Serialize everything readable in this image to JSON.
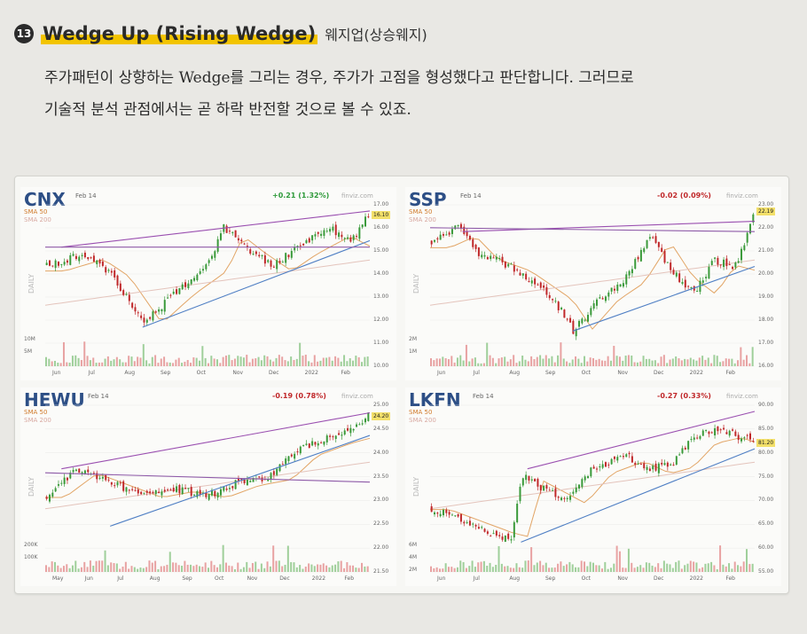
{
  "header": {
    "number": "13",
    "title": "Wedge Up (Rising Wedge)",
    "subtitle": "웨지업(상승웨지)"
  },
  "paragraph": {
    "line1": "주가패턴이 상향하는 Wedge를 그리는 경우, 주가가 고점을 형성했다고 판단합니다. 그러므로",
    "line2": "기술적 분석 관점에서는 곧 하락 반전할 것으로 볼 수 있죠."
  },
  "charts": [
    {
      "ticker": "CNX",
      "date": "Feb 14",
      "change": "+0.21 (1.32%)",
      "change_color": "#2e9a3a",
      "site": "finviz.com",
      "sma1": "SMA 50",
      "sma2": "SMA 200",
      "daily": "DAILY",
      "y_ticks": [
        "17.00",
        "16.00",
        "15.00",
        "14.00",
        "13.00",
        "12.00",
        "11.00",
        "10.00"
      ],
      "x_ticks": [
        "Jun",
        "Jul",
        "Aug",
        "Sep",
        "Oct",
        "Nov",
        "Dec",
        "2022",
        "Feb"
      ],
      "vol_ticks": [
        "10M",
        "5M"
      ],
      "last_tag": "16.10"
    },
    {
      "ticker": "SSP",
      "date": "Feb 14",
      "change": "-0.02 (0.09%)",
      "change_color": "#c0282a",
      "site": "finviz.com",
      "sma1": "SMA 50",
      "sma2": "SMA 200",
      "daily": "DAILY",
      "y_ticks": [
        "23.00",
        "22.00",
        "21.00",
        "20.00",
        "19.00",
        "18.00",
        "17.00",
        "16.00"
      ],
      "x_ticks": [
        "Jun",
        "Jul",
        "Aug",
        "Sep",
        "Oct",
        "Nov",
        "Dec",
        "2022",
        "Feb"
      ],
      "vol_ticks": [
        "2M",
        "1M"
      ],
      "last_tag": "22.19"
    },
    {
      "ticker": "HEWU",
      "date": "Feb 14",
      "change": "-0.19 (0.78%)",
      "change_color": "#c0282a",
      "site": "finviz.com",
      "sma1": "SMA 50",
      "sma2": "SMA 200",
      "daily": "DAILY",
      "y_ticks": [
        "25.00",
        "24.50",
        "24.00",
        "23.50",
        "23.00",
        "22.50",
        "22.00",
        "21.50"
      ],
      "x_ticks": [
        "May",
        "Jun",
        "Jul",
        "Aug",
        "Sep",
        "Oct",
        "Nov",
        "Dec",
        "2022",
        "Feb"
      ],
      "vol_ticks": [
        "200K",
        "100K"
      ],
      "last_tag": "24.20"
    },
    {
      "ticker": "LKFN",
      "date": "Feb 14",
      "change": "-0.27 (0.33%)",
      "change_color": "#c0282a",
      "site": "finviz.com",
      "sma1": "SMA 50",
      "sma2": "SMA 200",
      "daily": "DAILY",
      "y_ticks": [
        "90.00",
        "85.00",
        "80.00",
        "75.00",
        "70.00",
        "65.00",
        "60.00",
        "55.00"
      ],
      "x_ticks": [
        "Jun",
        "Jul",
        "Aug",
        "Sep",
        "Oct",
        "Nov",
        "Dec",
        "2022",
        "Feb"
      ],
      "vol_ticks": [
        "6M",
        "4M",
        "2M"
      ],
      "last_tag": "81.20"
    }
  ]
}
